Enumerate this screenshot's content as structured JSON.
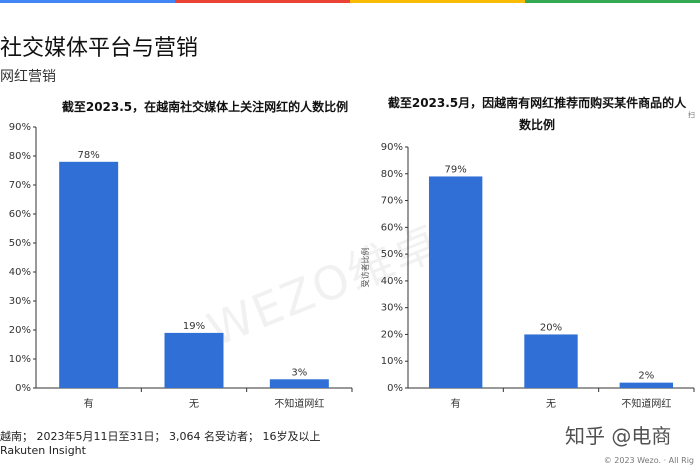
{
  "header": {
    "title": "社交媒体平台与营销",
    "subtitle": "网红营销"
  },
  "edge_mark": "扫",
  "watermark": "WEZO维卓",
  "brand_mark": "知乎 @电商",
  "colors": {
    "bar": "#2f6fd6",
    "axis": "#333333",
    "topbar": [
      "#4285f4",
      "#ea4335",
      "#fbbc05",
      "#34a853"
    ]
  },
  "chart_data": [
    {
      "type": "bar",
      "title": "截至2023.5，在越南社交媒体上关注网红的人数比例",
      "categories": [
        "有",
        "无",
        "不知道网红"
      ],
      "values": [
        78,
        19,
        3
      ],
      "value_labels": [
        "78%",
        "19%",
        "3%"
      ],
      "ylim": [
        0,
        90
      ],
      "yticks": [
        0,
        10,
        20,
        30,
        40,
        50,
        60,
        70,
        80,
        90
      ],
      "ytick_labels": [
        "0%",
        "10%",
        "20%",
        "30%",
        "40%",
        "50%",
        "60%",
        "70%",
        "80%",
        "90%"
      ],
      "ylabel": "",
      "xlabel": "",
      "grid": false
    },
    {
      "type": "bar",
      "title": "截至2023.5月，因越南有网红推荐而购买某件商品的人数比例",
      "categories": [
        "有",
        "无",
        "不知道网红"
      ],
      "values": [
        79,
        20,
        2
      ],
      "value_labels": [
        "79%",
        "20%",
        "2%"
      ],
      "ylim": [
        0,
        90
      ],
      "yticks": [
        0,
        10,
        20,
        30,
        40,
        50,
        60,
        70,
        80,
        90
      ],
      "ytick_labels": [
        "0%",
        "10%",
        "20%",
        "30%",
        "40%",
        "50%",
        "60%",
        "70%",
        "80%",
        "90%"
      ],
      "ylabel": "受访者比例",
      "xlabel": "",
      "grid": false
    }
  ],
  "footer": {
    "note": "越南； 2023年5月11日至31日； 3,064 名受访者； 16岁及以上",
    "source": "Rakuten Insight",
    "copyright": "© 2023 Wezo. · All Rig"
  }
}
